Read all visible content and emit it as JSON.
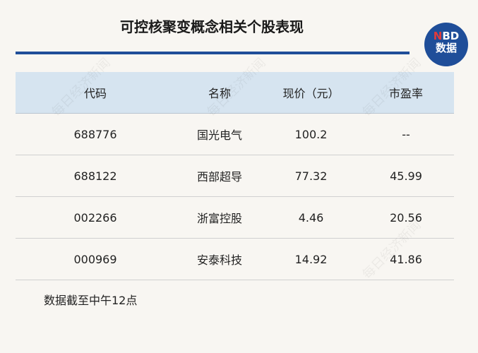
{
  "title": "可控核聚变概念相关个股表现",
  "logo": {
    "n": "N",
    "bd": "BD",
    "sub": "数据"
  },
  "watermark": "每日经济新闻",
  "table": {
    "headers": [
      "代码",
      "名称",
      "现价（元）",
      "市盈率"
    ],
    "rows": [
      [
        "688776",
        "国光电气",
        "100.2",
        "--"
      ],
      [
        "688122",
        "西部超导",
        "77.32",
        "45.99"
      ],
      [
        "002266",
        "浙富控股",
        "4.46",
        "20.56"
      ],
      [
        "000969",
        "安泰科技",
        "14.92",
        "41.86"
      ]
    ]
  },
  "note": "数据截至中午12点",
  "colors": {
    "accent": "#1f4e99",
    "header_bg": "#d6e4f0",
    "background": "#f8f6f2"
  }
}
